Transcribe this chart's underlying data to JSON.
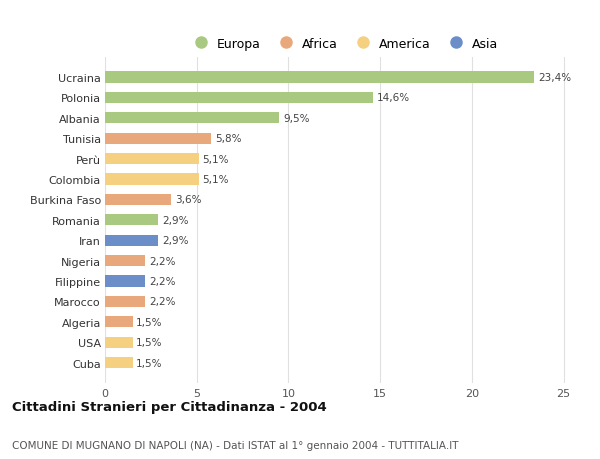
{
  "categories": [
    "Ucraina",
    "Polonia",
    "Albania",
    "Tunisia",
    "Perù",
    "Colombia",
    "Burkina Faso",
    "Romania",
    "Iran",
    "Nigeria",
    "Filippine",
    "Marocco",
    "Algeria",
    "USA",
    "Cuba"
  ],
  "values": [
    23.4,
    14.6,
    9.5,
    5.8,
    5.1,
    5.1,
    3.6,
    2.9,
    2.9,
    2.2,
    2.2,
    2.2,
    1.5,
    1.5,
    1.5
  ],
  "labels": [
    "23,4%",
    "14,6%",
    "9,5%",
    "5,8%",
    "5,1%",
    "5,1%",
    "3,6%",
    "2,9%",
    "2,9%",
    "2,2%",
    "2,2%",
    "2,2%",
    "1,5%",
    "1,5%",
    "1,5%"
  ],
  "continent": [
    "Europa",
    "Europa",
    "Europa",
    "Africa",
    "America",
    "America",
    "Africa",
    "Europa",
    "Asia",
    "Africa",
    "Asia",
    "Africa",
    "Africa",
    "America",
    "America"
  ],
  "colors": {
    "Europa": "#a8c97f",
    "Africa": "#e8a87c",
    "America": "#f5d080",
    "Asia": "#6b8ec9"
  },
  "xlim": [
    0,
    26
  ],
  "xticks": [
    0,
    5,
    10,
    15,
    20,
    25
  ],
  "title": "Cittadini Stranieri per Cittadinanza - 2004",
  "subtitle": "COMUNE DI MUGNANO DI NAPOLI (NA) - Dati ISTAT al 1° gennaio 2004 - TUTTITALIA.IT",
  "background_color": "#ffffff",
  "grid_color": "#e0e0e0",
  "bar_height": 0.55,
  "label_fontsize": 7.5,
  "tick_fontsize": 8,
  "title_fontsize": 9.5,
  "subtitle_fontsize": 7.5,
  "legend_entries": [
    "Europa",
    "Africa",
    "America",
    "Asia"
  ]
}
